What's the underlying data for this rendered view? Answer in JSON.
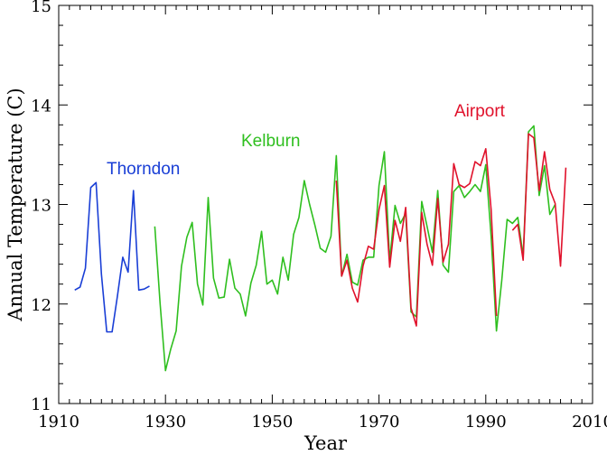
{
  "chart_data": {
    "type": "line",
    "title": "",
    "xlabel": "Year",
    "ylabel": "Annual Temperature (C)",
    "xlim": [
      1910,
      2010
    ],
    "ylim": [
      11,
      15
    ],
    "xticks": [
      1910,
      1930,
      1950,
      1970,
      1990,
      2010
    ],
    "yticks": [
      11,
      12,
      13,
      14,
      15
    ],
    "grid": false,
    "series": [
      {
        "name": "Thorndon",
        "color": "#1a3fd6",
        "x": [
          1913,
          1914,
          1915,
          1916,
          1917,
          1918,
          1919,
          1920,
          1921,
          1922,
          1923,
          1924,
          1925,
          1926,
          1927
        ],
        "y": [
          12.14,
          12.17,
          12.36,
          13.17,
          13.22,
          12.3,
          11.72,
          11.72,
          12.08,
          12.47,
          12.32,
          13.14,
          12.14,
          12.15,
          12.18
        ]
      },
      {
        "name": "Kelburn",
        "color": "#2fbf1f",
        "x": [
          1928,
          1929,
          1930,
          1931,
          1932,
          1933,
          1934,
          1935,
          1936,
          1937,
          1938,
          1939,
          1940,
          1941,
          1942,
          1943,
          1944,
          1945,
          1946,
          1947,
          1948,
          1949,
          1950,
          1951,
          1952,
          1953,
          1954,
          1955,
          1956,
          1957,
          1958,
          1959,
          1960,
          1961,
          1962,
          1963,
          1964,
          1965,
          1966,
          1967,
          1968,
          1969,
          1970,
          1971,
          1972,
          1973,
          1974,
          1975,
          1976,
          1977,
          1978,
          1979,
          1980,
          1981,
          1982,
          1983,
          1984,
          1985,
          1986,
          1987,
          1988,
          1989,
          1990,
          1991,
          1992,
          1993,
          1994,
          1995,
          1996,
          1997,
          1998,
          1999,
          2000,
          2001,
          2002,
          2003
        ],
        "y": [
          12.78,
          12.0,
          11.33,
          11.55,
          11.73,
          12.38,
          12.67,
          12.82,
          12.2,
          11.99,
          13.07,
          12.26,
          12.06,
          12.07,
          12.45,
          12.16,
          12.1,
          11.88,
          12.21,
          12.39,
          12.73,
          12.2,
          12.24,
          12.1,
          12.47,
          12.24,
          12.7,
          12.87,
          13.24,
          13.0,
          12.79,
          12.56,
          12.52,
          12.68,
          13.49,
          12.28,
          12.5,
          12.22,
          12.19,
          12.44,
          12.47,
          12.47,
          13.19,
          13.53,
          12.43,
          12.99,
          12.81,
          12.91,
          11.92,
          11.87,
          13.03,
          12.78,
          12.52,
          13.14,
          12.39,
          12.32,
          13.13,
          13.19,
          13.07,
          13.13,
          13.2,
          13.13,
          13.4,
          12.68,
          11.73,
          12.24,
          12.85,
          12.81,
          12.87,
          12.48,
          13.73,
          13.79,
          13.09,
          13.39,
          12.9,
          13.0
        ]
      },
      {
        "name": "Airport",
        "color": "#e0112b",
        "x": [
          1962,
          1963,
          1964,
          1965,
          1966,
          1967,
          1968,
          1969,
          1970,
          1971,
          1972,
          1973,
          1974,
          1975,
          1976,
          1977,
          1978,
          1979,
          1980,
          1981,
          1982,
          1983,
          1984,
          1985,
          1986,
          1987,
          1988,
          1989,
          1990,
          1991,
          1992,
          null,
          1995,
          1996,
          1997,
          1998,
          1999,
          2000,
          2001,
          2002,
          2003,
          2004,
          2005
        ],
        "y": [
          13.24,
          12.28,
          12.44,
          12.16,
          12.02,
          12.38,
          12.58,
          12.55,
          12.95,
          13.19,
          12.37,
          12.84,
          12.63,
          12.97,
          11.96,
          11.78,
          12.92,
          12.6,
          12.39,
          13.06,
          12.42,
          12.6,
          13.41,
          13.2,
          13.17,
          13.21,
          13.43,
          13.39,
          13.56,
          12.95,
          11.88,
          null,
          12.74,
          12.8,
          12.44,
          13.71,
          13.67,
          13.14,
          13.53,
          13.15,
          13.01,
          12.38,
          13.37
        ]
      }
    ]
  }
}
